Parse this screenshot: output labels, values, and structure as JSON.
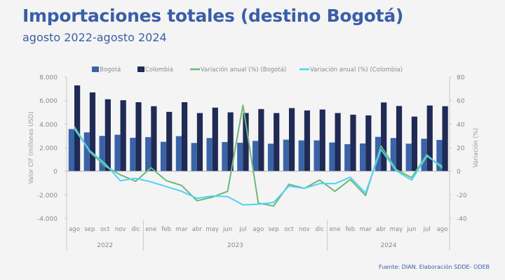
{
  "title": "Importaciones totales (destino Bogotá)",
  "subtitle": "agosto 2022-agosto 2024",
  "source": "Fuente: DIAN. Elaboración SDDE- ODEB",
  "chart_data": {
    "type": "bar+line",
    "categories": [
      "ago",
      "sep",
      "oct",
      "nov",
      "dic",
      "ene",
      "feb",
      "mar",
      "abr",
      "may",
      "jun",
      "jul",
      "ago",
      "sep",
      "oct",
      "nov",
      "dic",
      "ene",
      "feb",
      "mar",
      "abr",
      "may",
      "jun",
      "jul",
      "ago"
    ],
    "years": [
      {
        "label": "2022",
        "from": 0,
        "to": 4
      },
      {
        "label": "2023",
        "from": 5,
        "to": 16
      },
      {
        "label": "2024",
        "from": 17,
        "to": 24
      }
    ],
    "ylabel": "Valor CIF (millones USD)",
    "y2label": "Variación (%)",
    "ylim": [
      -4000,
      8000
    ],
    "yticks": [
      8000,
      6000,
      4000,
      2000,
      0,
      -2000,
      -4000
    ],
    "ytick_labels": [
      "8.000",
      "6.000",
      "4.000",
      "2.000",
      "0",
      "-2.000",
      "-4.000"
    ],
    "y2lim": [
      -40,
      80
    ],
    "y2ticks": [
      80,
      60,
      40,
      20,
      0,
      -20,
      -40
    ],
    "y2tick_labels": [
      "80",
      "60",
      "40",
      "20",
      "0",
      "-20",
      "-40"
    ],
    "legend_position": "top",
    "series": [
      {
        "name": "Bogotá",
        "type": "bar",
        "axis": "left",
        "color": "#3a63a8",
        "values": [
          3580,
          3300,
          3000,
          3100,
          2840,
          2900,
          2500,
          2980,
          2400,
          2820,
          2480,
          2420,
          2580,
          2340,
          2680,
          2620,
          2620,
          2440,
          2300,
          2360,
          2920,
          2820,
          2340,
          2760,
          2660
        ]
      },
      {
        "name": "Colombia",
        "type": "bar",
        "axis": "left",
        "color": "#1f2a55",
        "values": [
          7285,
          6690,
          6110,
          6030,
          5860,
          5520,
          5040,
          5860,
          4940,
          5400,
          5000,
          4940,
          5280,
          4940,
          5360,
          5160,
          5240,
          4940,
          4800,
          4740,
          5840,
          5540,
          4640,
          5580,
          5520
        ]
      },
      {
        "name": "Variación anual (%) (Bogotá)",
        "type": "line",
        "axis": "right",
        "color": "#6bb87a",
        "values": [
          38,
          16.5,
          4.5,
          -3,
          -8.5,
          3,
          -8,
          -12,
          -25,
          -22,
          -17,
          56,
          -27,
          -29.5,
          -11,
          -14.5,
          -7.5,
          -17,
          -7,
          -20.5,
          21.5,
          1.5,
          -5.5,
          14,
          2.5
        ]
      },
      {
        "name": "Variación anual (%) (Colombia)",
        "type": "line",
        "axis": "right",
        "color": "#4fd2f7",
        "values": [
          36,
          17.5,
          6.5,
          -8,
          -6,
          -9,
          -13,
          -17,
          -23,
          -21,
          -21.5,
          -28.5,
          -28,
          -26.5,
          -12.5,
          -14.5,
          -10.5,
          -10.5,
          -5,
          -18.5,
          18.5,
          0.5,
          -7.5,
          13,
          4
        ]
      }
    ]
  }
}
